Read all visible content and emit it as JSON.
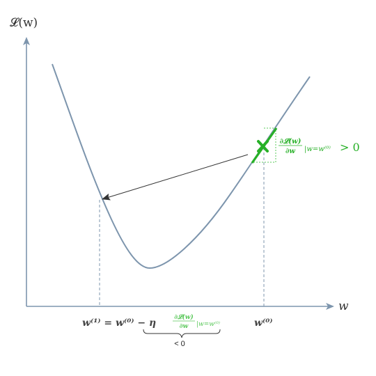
{
  "axes": {
    "y_label": "𝓛(w)",
    "x_label": "w"
  },
  "annotations": {
    "gradient_label_frac_num": "∂𝓛(w)",
    "gradient_label_frac_den": "∂w",
    "gradient_label_eval": "|w=w⁽⁰⁾",
    "gradient_label_ineq": "> 0",
    "update_rule_lhs": "w⁽¹⁾ = w⁽⁰⁾ − η",
    "update_frac_num": "∂𝓛(w)",
    "update_frac_den": "∂w",
    "update_eval": "|w=w⁽⁰⁾",
    "w0_tick_label": "w⁽⁰⁾",
    "brace_label": "< 0"
  },
  "colors": {
    "axis": "#7d95ad",
    "curve": "#7d95ad",
    "green": "#27b027",
    "green_light": "#5ac85a",
    "arrow": "#333333",
    "dashed": "#7d95ad",
    "text": "#444444"
  }
}
